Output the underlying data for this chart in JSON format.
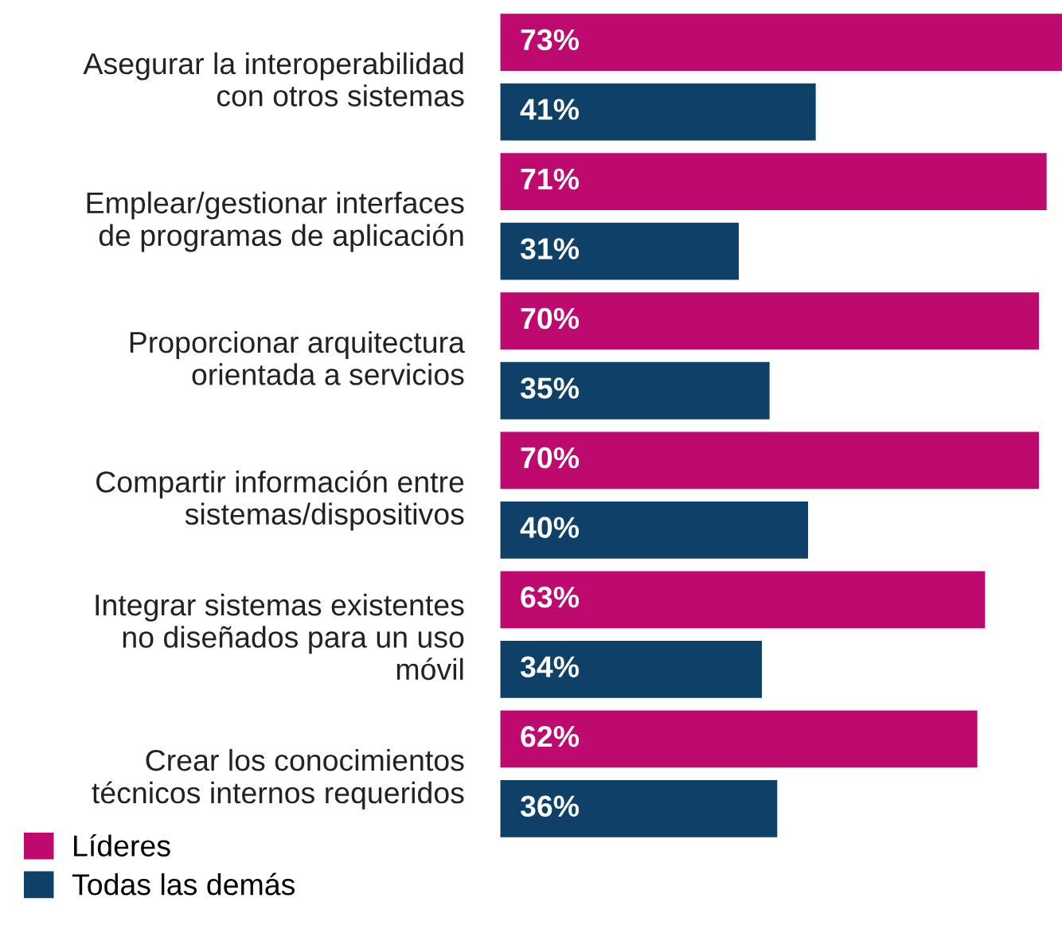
{
  "chart_data": {
    "type": "bar",
    "orientation": "horizontal",
    "legend": "bottom left",
    "grid": false,
    "categories": [
      "Asegurar la interoperabilidad\ncon otros sistemas",
      "Emplear/gestionar interfaces\nde programas de aplicación",
      "Proporcionar arquitectura\norientada a servicios",
      "Compartir información entre\nsistemas/dispositivos",
      "Integrar sistemas existentes\nno diseñados para un uso\nmóvil",
      "Crear los conocimientos\ntécnicos internos requeridos"
    ],
    "series": [
      {
        "name": "Líderes",
        "color": "#be0a6e",
        "values": [
          73,
          71,
          70,
          70,
          63,
          62
        ],
        "value_labels": [
          "73%",
          "71%",
          "70%",
          "70%",
          "63%",
          "62%"
        ]
      },
      {
        "name": "Todas las demás",
        "color": "#0f4068",
        "values": [
          41,
          31,
          35,
          40,
          34,
          36
        ],
        "value_labels": [
          "41%",
          "31%",
          "35%",
          "40%",
          "34%",
          "36%"
        ]
      }
    ]
  }
}
